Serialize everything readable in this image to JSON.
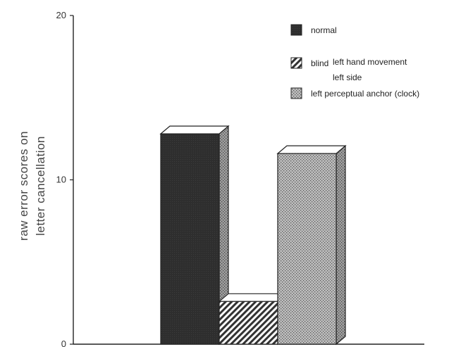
{
  "chart_data": {
    "type": "bar",
    "title": "",
    "xlabel": "",
    "ylabel_lines": [
      "raw error scores on",
      "letter cancellation"
    ],
    "ylim": [
      0,
      20
    ],
    "yticks": [
      "0",
      "10",
      "20"
    ],
    "style": "3d",
    "grid": false,
    "legend_position": "top-right",
    "series": [
      {
        "name": "normal",
        "value": 12.8,
        "pattern": "solid-dark"
      },
      {
        "name": "blind left hand movement left side",
        "label_lines": [
          "blind",
          "left hand movement",
          "left side"
        ],
        "value": 2.6,
        "pattern": "diagonal-hatch"
      },
      {
        "name": "left perceptual anchor (clock)",
        "value": 11.6,
        "pattern": "stipple"
      }
    ],
    "colors": {
      "dark": "#2e2e2e",
      "top": "#ffffff",
      "stroke": "#222222",
      "stipple_bg": "#bdbdbd",
      "stipple_dot": "#555555"
    }
  }
}
